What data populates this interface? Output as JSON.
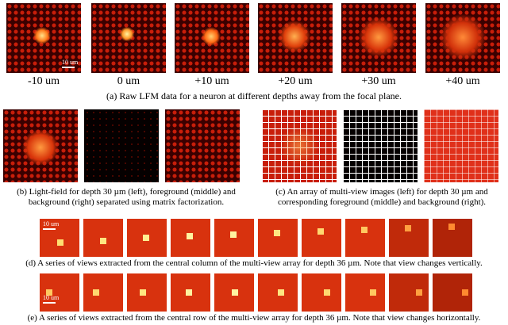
{
  "row_a": {
    "depth_labels": [
      "-10 um",
      "0 um",
      "+10 um",
      "+20 um",
      "+30 um",
      "+40 um"
    ],
    "scalebar": "10 um",
    "caption": "(a) Raw LFM data for a neuron at different depths away from the focal plane."
  },
  "row_b": {
    "caption_b": "(b) Light-field for depth 30 µm (left), foreground (middle) and background (right) separated using matrix factorization.",
    "caption_c": "(c) An array of multi-view images (left) for depth 30 µm and corresponding foreground (middle) and background (right)."
  },
  "row_d": {
    "scalebar": "10 um",
    "caption": "(d) A series of views extracted from the central column of the multi-view array for depth 36 µm. Note that view changes vertically."
  },
  "row_e": {
    "scalebar": "10 um",
    "caption": "(e) A series of views extracted from the central row of the multi-view array for depth 36 µm. Note that view changes horizontally."
  },
  "colors": {
    "lenslet_bg": "#3a0000",
    "lenslet": "#c81e0a",
    "hot": "#fff3a0",
    "dark": "#050000",
    "grid_line": "#ffffff"
  }
}
